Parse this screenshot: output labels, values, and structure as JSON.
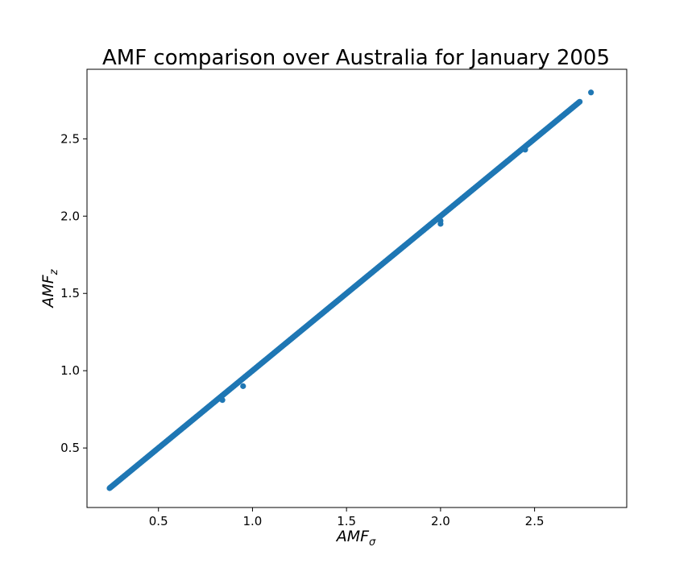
{
  "chart_data": {
    "type": "scatter",
    "title": "AMF comparison over Australia for January 2005",
    "xlabel": "AMF",
    "xlabel_subscript": "σ",
    "ylabel": "AMF",
    "ylabel_subscript": "z",
    "xlim": [
      0.12,
      2.99
    ],
    "ylim": [
      0.115,
      2.95
    ],
    "xticks": [
      0.5,
      1.0,
      1.5,
      2.0,
      2.5
    ],
    "xtick_labels": [
      "0.5",
      "1.0",
      "1.5",
      "2.0",
      "2.5"
    ],
    "yticks": [
      0.5,
      1.0,
      1.5,
      2.0,
      2.5
    ],
    "ytick_labels": [
      "0.5",
      "1.0",
      "1.5",
      "2.0",
      "2.5"
    ],
    "grid": false,
    "series": [
      {
        "color": "#1f77b4",
        "x_range": [
          0.24,
          2.74
        ],
        "slope": 1.0,
        "intercept": 0.0,
        "outliers": {
          "x": [
            0.84,
            0.95,
            2.0,
            2.0,
            2.45,
            2.8
          ],
          "y": [
            0.81,
            0.9,
            1.97,
            1.95,
            2.43,
            2.8
          ]
        }
      }
    ]
  }
}
